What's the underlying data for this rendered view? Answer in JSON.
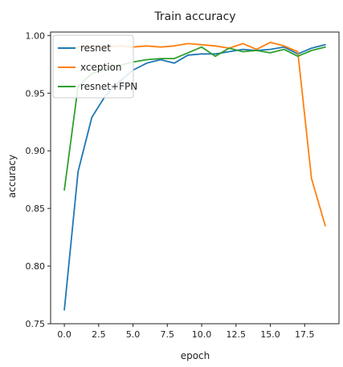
{
  "chart_data": {
    "type": "line",
    "title": "Train accuracy",
    "xlabel": "epoch",
    "ylabel": "accuracy",
    "xlim": [
      -1,
      20
    ],
    "ylim": [
      0.75,
      1.003
    ],
    "xticks": [
      0.0,
      2.5,
      5.0,
      7.5,
      10.0,
      12.5,
      15.0,
      17.5
    ],
    "xtick_labels": [
      "0.0",
      "2.5",
      "5.0",
      "7.5",
      "10.0",
      "12.5",
      "15.0",
      "17.5"
    ],
    "yticks": [
      0.75,
      0.8,
      0.85,
      0.9,
      0.95,
      1.0
    ],
    "ytick_labels": [
      "0.75",
      "0.80",
      "0.85",
      "0.90",
      "0.95",
      "1.00"
    ],
    "grid": false,
    "legend_position": "top-left",
    "x": [
      0,
      1,
      2,
      3,
      4,
      5,
      6,
      7,
      8,
      9,
      10,
      11,
      12,
      13,
      14,
      15,
      16,
      17,
      18,
      19
    ],
    "series": [
      {
        "name": "resnet",
        "color": "#1f77b4",
        "values": [
          0.762,
          0.882,
          0.929,
          0.948,
          0.96,
          0.97,
          0.976,
          0.979,
          0.976,
          0.983,
          0.984,
          0.984,
          0.986,
          0.988,
          0.987,
          0.988,
          0.99,
          0.984,
          0.989,
          0.992
        ]
      },
      {
        "name": "xception",
        "color": "#ff7f0e",
        "values": [
          0.988,
          0.99,
          0.991,
          0.99,
          0.991,
          0.99,
          0.991,
          0.99,
          0.991,
          0.993,
          0.992,
          0.991,
          0.989,
          0.993,
          0.988,
          0.994,
          0.991,
          0.986,
          0.876,
          0.835
        ]
      },
      {
        "name": "resnet+FPN",
        "color": "#2ca02c",
        "values": [
          0.866,
          0.956,
          0.967,
          0.971,
          0.974,
          0.977,
          0.979,
          0.98,
          0.98,
          0.985,
          0.99,
          0.982,
          0.989,
          0.986,
          0.987,
          0.985,
          0.988,
          0.982,
          0.987,
          0.99
        ]
      }
    ]
  }
}
